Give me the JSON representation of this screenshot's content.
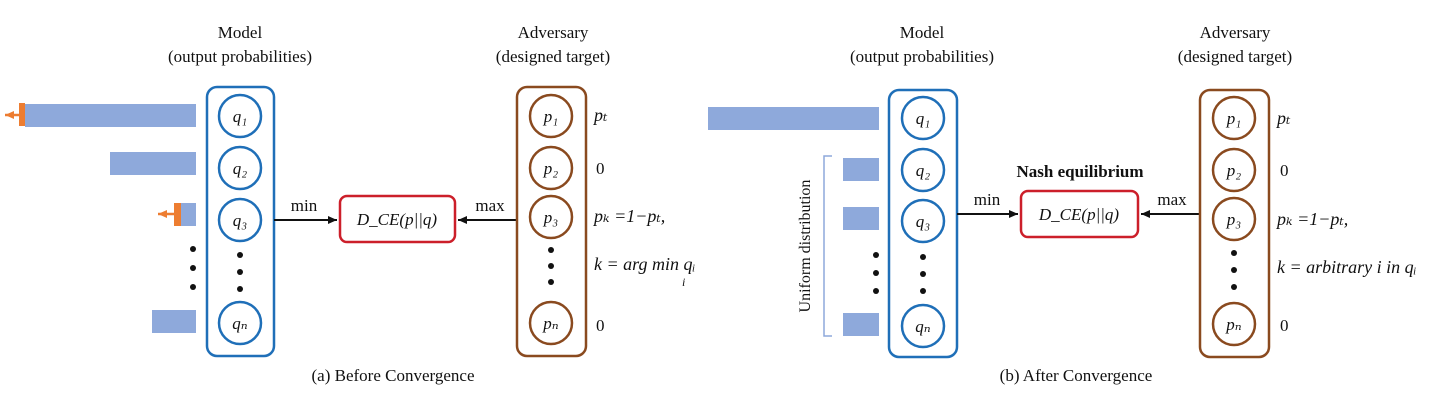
{
  "colors": {
    "model": "#1f6fb8",
    "adversary": "#8a4a1f",
    "loss_box": "#cc1f2a",
    "bar": "#8ea9db",
    "arrow": "#ed7d31"
  },
  "panel_a": {
    "model_title": "Model",
    "model_subtitle": "(output probabilities)",
    "adversary_title": "Adversary",
    "adversary_subtitle": "(designed target)",
    "q_nodes": [
      "q₁",
      "q₂",
      "q₃",
      "qₙ"
    ],
    "p_nodes": [
      "p₁",
      "p₂",
      "p₃",
      "pₙ"
    ],
    "p_values": [
      "pₜ",
      "0",
      "pₖ =1−pₜ,",
      "k = arg min qᵢ"
    ],
    "p_value_last": "0",
    "argmin_sub": "i",
    "min_label": "min",
    "max_label": "max",
    "loss_label": "D_CE(p||q)",
    "caption": "(a) Before Convergence"
  },
  "panel_b": {
    "model_title": "Model",
    "model_subtitle": "(output probabilities)",
    "adversary_title": "Adversary",
    "adversary_subtitle": "(designed target)",
    "q_nodes": [
      "q₁",
      "q₂",
      "q₃",
      "qₙ"
    ],
    "p_nodes": [
      "p₁",
      "p₂",
      "p₃",
      "pₙ"
    ],
    "p_values": [
      "pₜ",
      "0",
      "pₖ =1−pₜ,",
      "k = arbitrary i in qᵢ"
    ],
    "p_value_last": "0",
    "min_label": "min",
    "max_label": "max",
    "loss_label": "D_CE(p||q)",
    "nash_label": "Nash equilibrium",
    "uniform_label": "Uniform distribution",
    "caption": "(b) After Convergence"
  }
}
